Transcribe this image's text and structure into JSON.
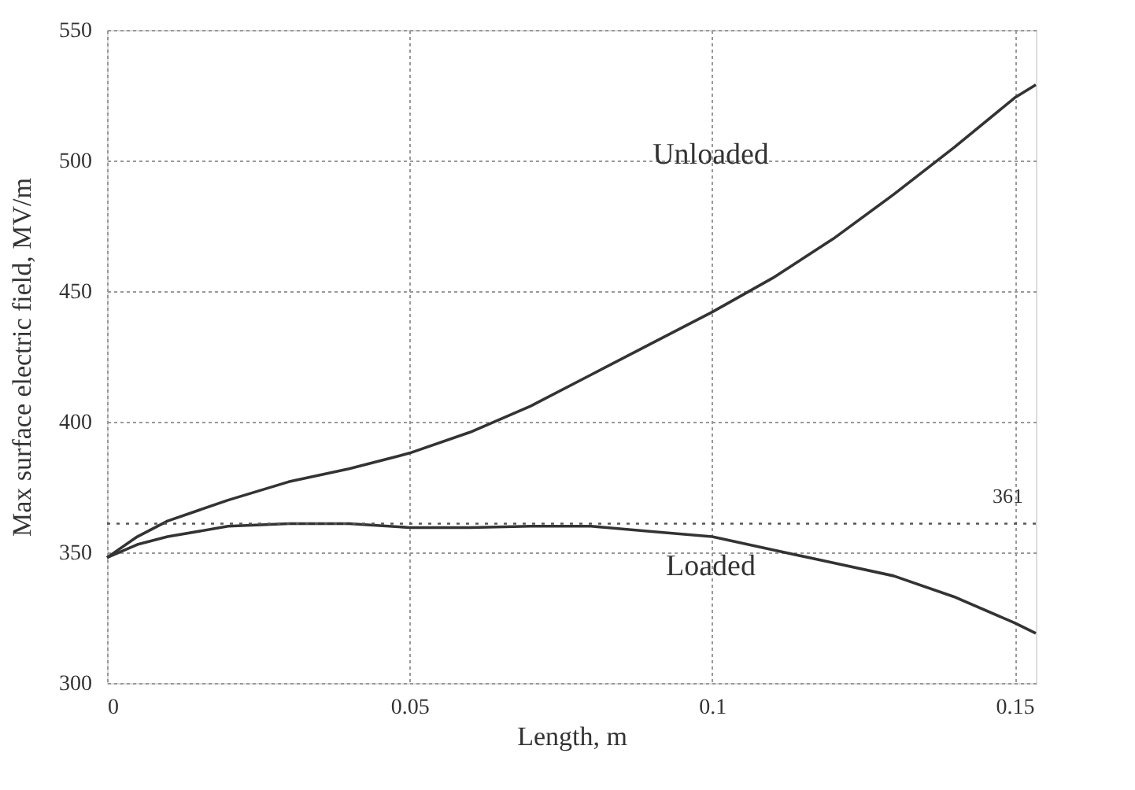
{
  "chart_data": {
    "type": "line",
    "xlabel": "Length, m",
    "ylabel": "Max surface electric field, MV/m",
    "x": [
      0,
      0.005,
      0.01,
      0.02,
      0.03,
      0.04,
      0.05,
      0.06,
      0.07,
      0.08,
      0.09,
      0.1,
      0.11,
      0.12,
      0.13,
      0.14,
      0.15,
      0.1535
    ],
    "series": [
      {
        "color": "#333333",
        "values": [
          348,
          356,
          362,
          370,
          377,
          382,
          388,
          396,
          406,
          418,
          430,
          442,
          455,
          470,
          487,
          505,
          524,
          529
        ]
      },
      {
        "color": "#333333",
        "values": [
          348,
          353,
          356,
          360,
          361,
          361,
          359.5,
          359.5,
          360,
          360,
          358,
          356,
          351,
          346,
          341,
          333,
          323,
          319
        ]
      }
    ],
    "xlim": [
      0,
      0.1535
    ],
    "xticks": [
      0,
      0.05,
      0.1,
      0.15
    ],
    "ylim": [
      300,
      550
    ],
    "yticks": [
      300,
      350,
      400,
      450,
      500,
      550
    ],
    "grid": true,
    "line_style": "solid",
    "marker": "none",
    "ref_lines": [
      {
        "axis": "y",
        "value": 361,
        "label": "361",
        "line_style": "dotted",
        "color": "#555555"
      }
    ],
    "annotations": [
      "Unloaded",
      "Loaded"
    ]
  }
}
